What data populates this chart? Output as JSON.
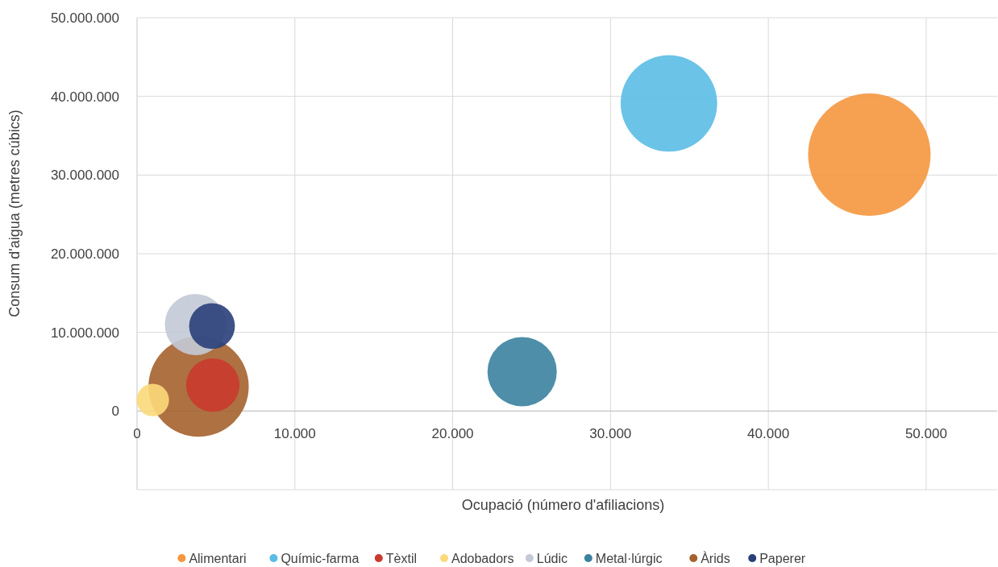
{
  "chart_data": {
    "type": "bubble",
    "xlabel": "Ocupació (número d'afiliacions)",
    "ylabel": "Consum d'aigua (metres cúbics)",
    "xlim": [
      0,
      54500
    ],
    "xticks": [
      0,
      {
        "value": 10000,
        "label": "10.000"
      },
      {
        "value": 20000,
        "label": "20.000"
      },
      {
        "value": 30000,
        "label": "30.000"
      },
      {
        "value": 40000,
        "label": "40.000"
      },
      {
        "value": 50000,
        "label": "50.000"
      }
    ],
    "ylim": [
      -10000000,
      50000000
    ],
    "yticks": [
      {
        "value": -10000000,
        "label": null
      },
      0,
      {
        "value": 10000000,
        "label": "10.000.000"
      },
      {
        "value": 20000000,
        "label": "20.000.000"
      },
      {
        "value": 30000000,
        "label": "30.000.000"
      },
      {
        "value": 40000000,
        "label": "40.000.000"
      },
      {
        "value": 50000000,
        "label": "50.000.000"
      }
    ],
    "grid": true,
    "legend": "bottom",
    "series": [
      {
        "name": "Alimentari",
        "color": "#f5973f",
        "x": [
          46400
        ],
        "values": [
          32600000
        ],
        "sizes": [
          1
        ]
      },
      {
        "name": "Químic-farma",
        "color": "#5bbce6",
        "x": [
          33700
        ],
        "values": [
          39100000
        ],
        "sizes": [
          0.62
        ]
      },
      {
        "name": "Tèxtil",
        "color": "#c93a2e",
        "x": [
          4800
        ],
        "values": [
          3300000
        ],
        "sizes": [
          0.19
        ]
      },
      {
        "name": "Adobadors",
        "color": "#fcd97a",
        "x": [
          1000
        ],
        "values": [
          1400000
        ],
        "sizes": [
          0.07
        ]
      },
      {
        "name": "Lúdic",
        "color": "#c3cad6",
        "x": [
          3700
        ],
        "values": [
          11000000
        ],
        "sizes": [
          0.25
        ]
      },
      {
        "name": "Metal·lúrgic",
        "color": "#3b82a0",
        "x": [
          24400
        ],
        "values": [
          5000000
        ],
        "sizes": [
          0.32
        ]
      },
      {
        "name": "Àrids",
        "color": "#a5622e",
        "x": [
          3900
        ],
        "values": [
          3100000
        ],
        "sizes": [
          0.67
        ]
      },
      {
        "name": "Paperer",
        "color": "#2a3f7a",
        "x": [
          4750
        ],
        "values": [
          10800000
        ],
        "sizes": [
          0.14
        ]
      }
    ]
  }
}
